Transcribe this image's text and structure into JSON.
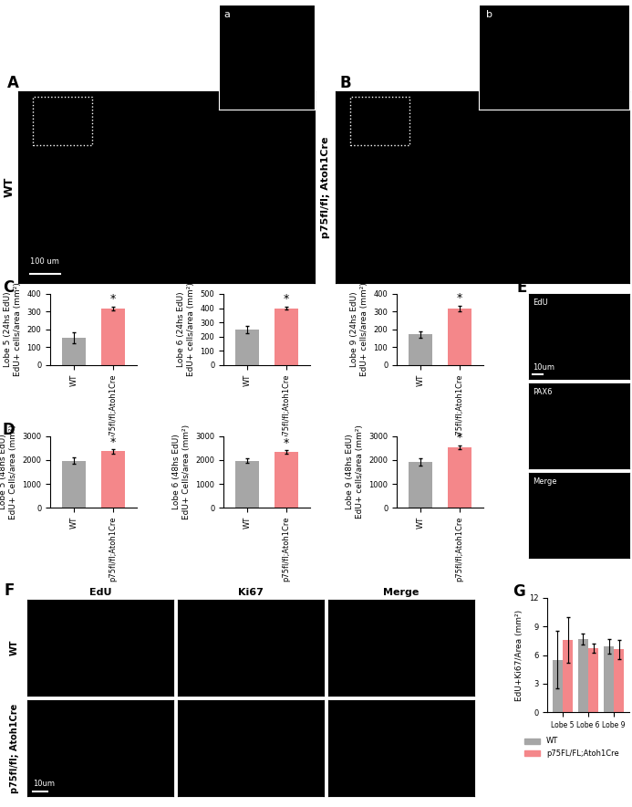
{
  "images": [
    {
      "panel": "A",
      "row_label": "WT",
      "scale_bar": "100 um",
      "inset": "a"
    },
    {
      "panel": "B",
      "row_label": "p75fl/fl; Atoh1Cre",
      "inset": "b"
    },
    {
      "panel": "E",
      "channels": [
        "EdU",
        "PAX6",
        "Merge"
      ],
      "scale_bar": "10um"
    },
    {
      "panel": "F",
      "channels": [
        "EdU",
        "Ki67",
        "Merge"
      ],
      "rows": [
        "WT",
        "p75fl/fl; Atoh1Cre"
      ],
      "scale_bar": "10um"
    }
  ],
  "chart_data": [
    {
      "type": "bar",
      "panel": "C",
      "categories": [
        "WT",
        "p75fl/fl;Atoh1Cre"
      ],
      "values": [
        155,
        318
      ],
      "errors": [
        30,
        12
      ],
      "colors": [
        "#a6a6a6",
        "#f4878a"
      ],
      "y_label": "Lobe 5 (24hs EdU)\nEdU+ cells/area (mm²)",
      "ylim": [
        0,
        400
      ],
      "yticks": [
        0,
        100,
        200,
        300,
        400
      ],
      "annotations": [
        {
          "category": "p75fl/fl;Atoh1Cre",
          "text": "*"
        }
      ]
    },
    {
      "type": "bar",
      "categories": [
        "WT",
        "p75fl/fl;Atoh1Cre"
      ],
      "values": [
        248,
        400
      ],
      "errors": [
        25,
        12
      ],
      "colors": [
        "#a6a6a6",
        "#f4878a"
      ],
      "y_label": "Lobe 6 (24hs EdU)\nEdU+ cells/area (mm²)",
      "ylim": [
        0,
        500
      ],
      "yticks": [
        0,
        100,
        200,
        300,
        400,
        500
      ],
      "annotations": [
        {
          "category": "p75fl/fl;Atoh1Cre",
          "text": "*"
        }
      ]
    },
    {
      "type": "bar",
      "categories": [
        "WT",
        "p75fl/fl;Atoh1Cre"
      ],
      "values": [
        172,
        320
      ],
      "errors": [
        20,
        15
      ],
      "colors": [
        "#a6a6a6",
        "#f4878a"
      ],
      "y_label": "Lobe 9 (24hs EdU)\nEdU+ cells/area (mm²)",
      "ylim": [
        0,
        400
      ],
      "yticks": [
        0,
        100,
        200,
        300,
        400
      ],
      "annotations": [
        {
          "category": "p75fl/fl;Atoh1Cre",
          "text": "*"
        }
      ]
    },
    {
      "type": "bar",
      "panel": "D",
      "categories": [
        "WT",
        "p75fl/fl;Atoh1Cre"
      ],
      "values": [
        1980,
        2370
      ],
      "errors": [
        150,
        90
      ],
      "colors": [
        "#a6a6a6",
        "#f4878a"
      ],
      "y_label": "Lobe 5 (48hs EdU)\nEdU+ Cells/area (mm²)",
      "ylim": [
        0,
        3000
      ],
      "yticks": [
        0,
        1000,
        2000,
        3000
      ],
      "annotations": [
        {
          "category": "p75fl/fl;Atoh1Cre",
          "text": "*"
        }
      ]
    },
    {
      "type": "bar",
      "categories": [
        "WT",
        "p75fl/fl;Atoh1Cre"
      ],
      "values": [
        1980,
        2330
      ],
      "errors": [
        100,
        80
      ],
      "colors": [
        "#a6a6a6",
        "#f4878a"
      ],
      "y_label": "Lobe 6 (48hs EdU)\nEdU+ Cells/area (mm²)",
      "ylim": [
        0,
        3000
      ],
      "yticks": [
        0,
        1000,
        2000,
        3000
      ],
      "annotations": [
        {
          "category": "p75fl/fl;Atoh1Cre",
          "text": "*"
        }
      ]
    },
    {
      "type": "bar",
      "categories": [
        "WT",
        "p75fl/fl;Atoh1Cre"
      ],
      "values": [
        1920,
        2540
      ],
      "errors": [
        140,
        80
      ],
      "colors": [
        "#a6a6a6",
        "#f4878a"
      ],
      "y_label": "Lobe 9 (48hs EdU)\nEdU+ cells/area (mm²)",
      "ylim": [
        0,
        3000
      ],
      "yticks": [
        0,
        1000,
        2000,
        3000
      ],
      "annotations": [
        {
          "category": "p75fl/fl;Atoh1Cre",
          "text": "*"
        }
      ]
    },
    {
      "type": "bar",
      "panel": "G",
      "categories": [
        "Lobe 5",
        "Lobe 6",
        "Lobe 9"
      ],
      "series": [
        {
          "name": "WT",
          "color": "#a6a6a6",
          "values": [
            5.5,
            7.7,
            6.9
          ],
          "errors": [
            3.0,
            0.6,
            0.8
          ]
        },
        {
          "name": "p75FL/FL;Atoh1Cre",
          "color": "#f4878a",
          "values": [
            7.6,
            6.7,
            6.6
          ],
          "errors": [
            2.4,
            0.5,
            1.0
          ]
        }
      ],
      "y_label": "EdU+Ki67/Area (mm²)",
      "ylim": [
        0,
        12
      ],
      "yticks": [
        0,
        3,
        6,
        9,
        12
      ],
      "legend": "bottom"
    }
  ]
}
